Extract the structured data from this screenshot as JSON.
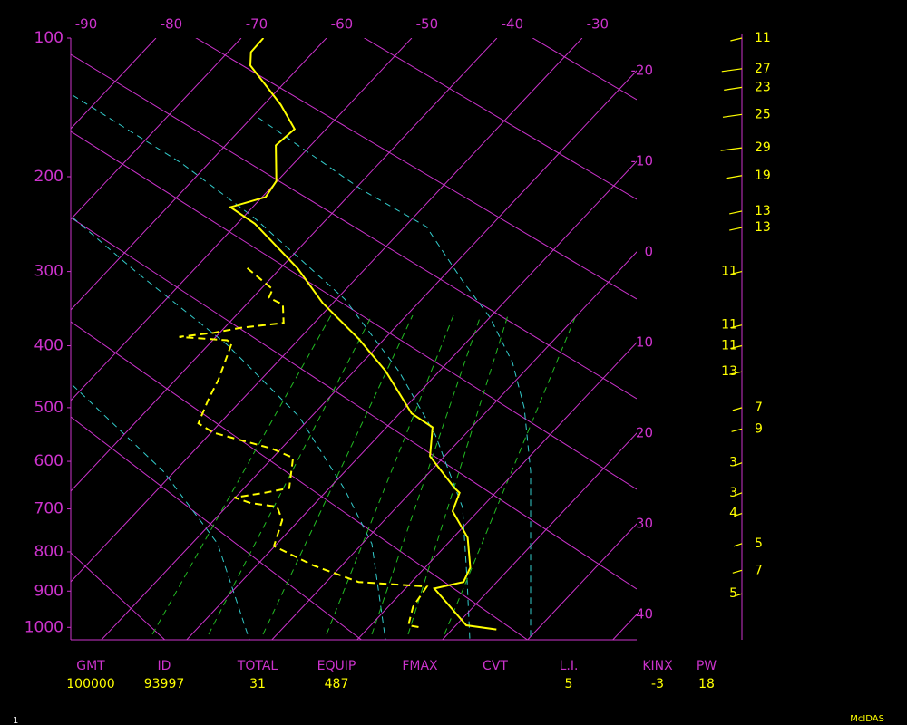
{
  "chart_data": {
    "type": "skewt",
    "ylim": [
      100,
      1036
    ],
    "y_scale_exponent": 0.286,
    "yticks": [
      100,
      200,
      300,
      400,
      500,
      600,
      700,
      800,
      900,
      1000
    ],
    "xlim": [
      -90,
      -23.6
    ],
    "xticks_top": [
      -90,
      -80,
      -70,
      -60,
      -50,
      -40,
      -30
    ],
    "xticks_right": [
      -20,
      -10,
      0,
      10,
      20,
      30,
      40
    ],
    "axis_color": "#cc33cc",
    "temperature": {
      "color": "#ffff00",
      "line_style": "solid",
      "pressure": [
        100,
        108,
        116,
        128,
        142,
        160,
        173,
        204,
        219,
        229,
        246,
        296,
        340,
        390,
        439,
        510,
        535,
        590,
        655,
        665,
        705,
        766,
        839,
        876,
        893,
        994,
        1006
      ],
      "values": [
        -67.4,
        -67.3,
        -65.9,
        -62.1,
        -58.0,
        -53.7,
        -54.1,
        -50.1,
        -49.6,
        -52.6,
        -47.9,
        -38.0,
        -31.2,
        -23.0,
        -16.3,
        -8.6,
        -4.6,
        -1.7,
        4.7,
        5.8,
        7.0,
        11.7,
        15.3,
        16.1,
        13.4,
        21.2,
        25.2
      ]
    },
    "dewpoint": {
      "color": "#ffff00",
      "line_style": "dashed",
      "pressure": [
        296,
        322,
        333,
        342,
        367,
        374,
        381,
        387,
        392,
        397,
        452,
        485,
        528,
        545,
        575,
        593,
        655,
        665,
        675,
        687,
        695,
        725,
        786,
        834,
        876,
        888,
        942,
        994,
        1000
      ],
      "values": [
        -43.9,
        -38.6,
        -38.1,
        -35.7,
        -33.6,
        -38.1,
        -40.7,
        -44.3,
        -38.3,
        -37.4,
        -35.0,
        -34.0,
        -32.5,
        -29.7,
        -21.1,
        -17.6,
        -14.7,
        -17.1,
        -20.1,
        -17.6,
        -14.1,
        -12.0,
        -10.1,
        -3.3,
        3.8,
        12.3,
        12.9,
        14.4,
        16.0
      ]
    },
    "wind": {
      "color": "#ffff00",
      "pressure": [
        100,
        118,
        130,
        149,
        175,
        199,
        233,
        250,
        300,
        370,
        400,
        440,
        500,
        538,
        603,
        665,
        710,
        780,
        846,
        907
      ],
      "speed": [
        11,
        27,
        23,
        25,
        29,
        19,
        13,
        13,
        11,
        11,
        11,
        13,
        7,
        9,
        3,
        3,
        4,
        5,
        7,
        5
      ]
    }
  },
  "footer": {
    "stats": [
      {
        "label": "GMT",
        "value": "100000"
      },
      {
        "label": "ID",
        "value": "93997"
      },
      {
        "label": "TOTAL",
        "value": 31
      },
      {
        "label": "EQUIP",
        "value": 487
      },
      {
        "label": "FMAX"
      },
      {
        "label": "CVT"
      },
      {
        "label": "L.I.",
        "value": 5
      },
      {
        "label": "KINX",
        "value": -3
      },
      {
        "label": "PW",
        "value": 18
      }
    ],
    "frame": "1",
    "source": "McIDAS"
  }
}
